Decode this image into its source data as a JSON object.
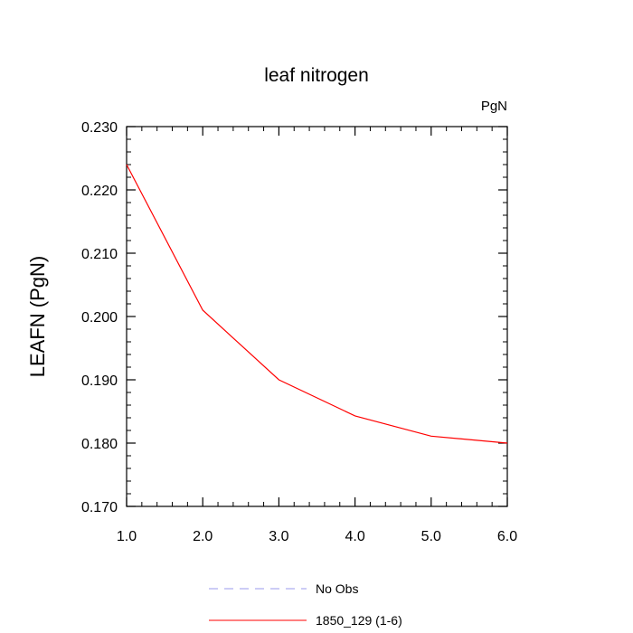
{
  "chart_data": {
    "type": "line",
    "title": "leaf nitrogen",
    "units_label": "PgN",
    "xlabel": "",
    "ylabel": "LEAFN  (PgN)",
    "xlim": [
      1.0,
      6.0
    ],
    "ylim": [
      0.17,
      0.23
    ],
    "x_ticks": [
      "1.0",
      "2.0",
      "3.0",
      "4.0",
      "5.0",
      "6.0"
    ],
    "y_ticks": [
      "0.170",
      "0.180",
      "0.190",
      "0.200",
      "0.210",
      "0.220",
      "0.230"
    ],
    "series": [
      {
        "name": "1850_129 (1-6)",
        "color": "#ff0000",
        "style": "solid",
        "x": [
          1.0,
          2.0,
          3.0,
          4.0,
          5.0,
          6.0
        ],
        "y": [
          0.224,
          0.201,
          0.19,
          0.1843,
          0.1811,
          0.18
        ]
      },
      {
        "name": "No Obs",
        "color": "#9999ee",
        "style": "dashed",
        "x": [],
        "y": []
      }
    ],
    "legend_position": "bottom",
    "grid": false
  }
}
